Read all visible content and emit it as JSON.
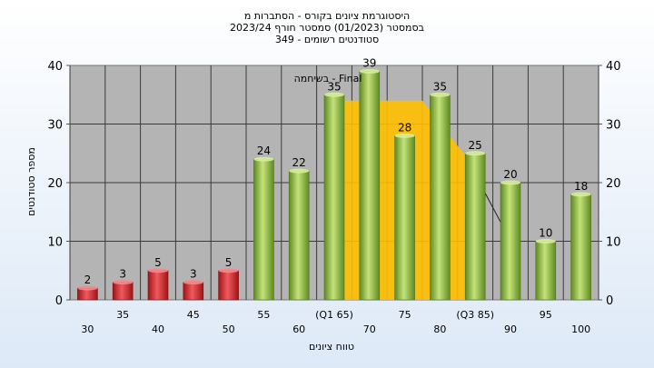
{
  "chart_data": {
    "type": "bar",
    "title_lines": [
      "היסטוגרמת ציונים בקורס - הסתברות מ",
      "בסמסטר  (01/2023)  סמסטר חורף  2023/24",
      "סטודנטים רשומים - 349"
    ],
    "xlabel": "טווח ציונים",
    "ylabel": "מספר סטודנטים",
    "ylim": [
      0,
      40
    ],
    "yticks": [
      0,
      10,
      20,
      30,
      40
    ],
    "grid": true,
    "series_label": "בשיחמה - Final",
    "categories": [
      "30",
      "35",
      "40",
      "45",
      "50",
      "55",
      "60",
      "65",
      "70",
      "75",
      "80",
      "85",
      "90",
      "95",
      "100"
    ],
    "xtick_labels": [
      "30",
      "35",
      "40",
      "45",
      "50",
      "55",
      "60",
      "(Q1 65)",
      "70",
      "75",
      "80",
      "(Q3 85)",
      "90",
      "95",
      "100"
    ],
    "values": [
      2,
      3,
      5,
      3,
      5,
      24,
      22,
      35,
      39,
      28,
      35,
      25,
      20,
      10,
      18
    ],
    "fail_color": "#e0262b",
    "pass_color": "#9cc641",
    "iqr_color": "#ffc000",
    "iqr_band": {
      "from": "65",
      "to": "85",
      "peak": "75",
      "peak_value": 34
    }
  }
}
